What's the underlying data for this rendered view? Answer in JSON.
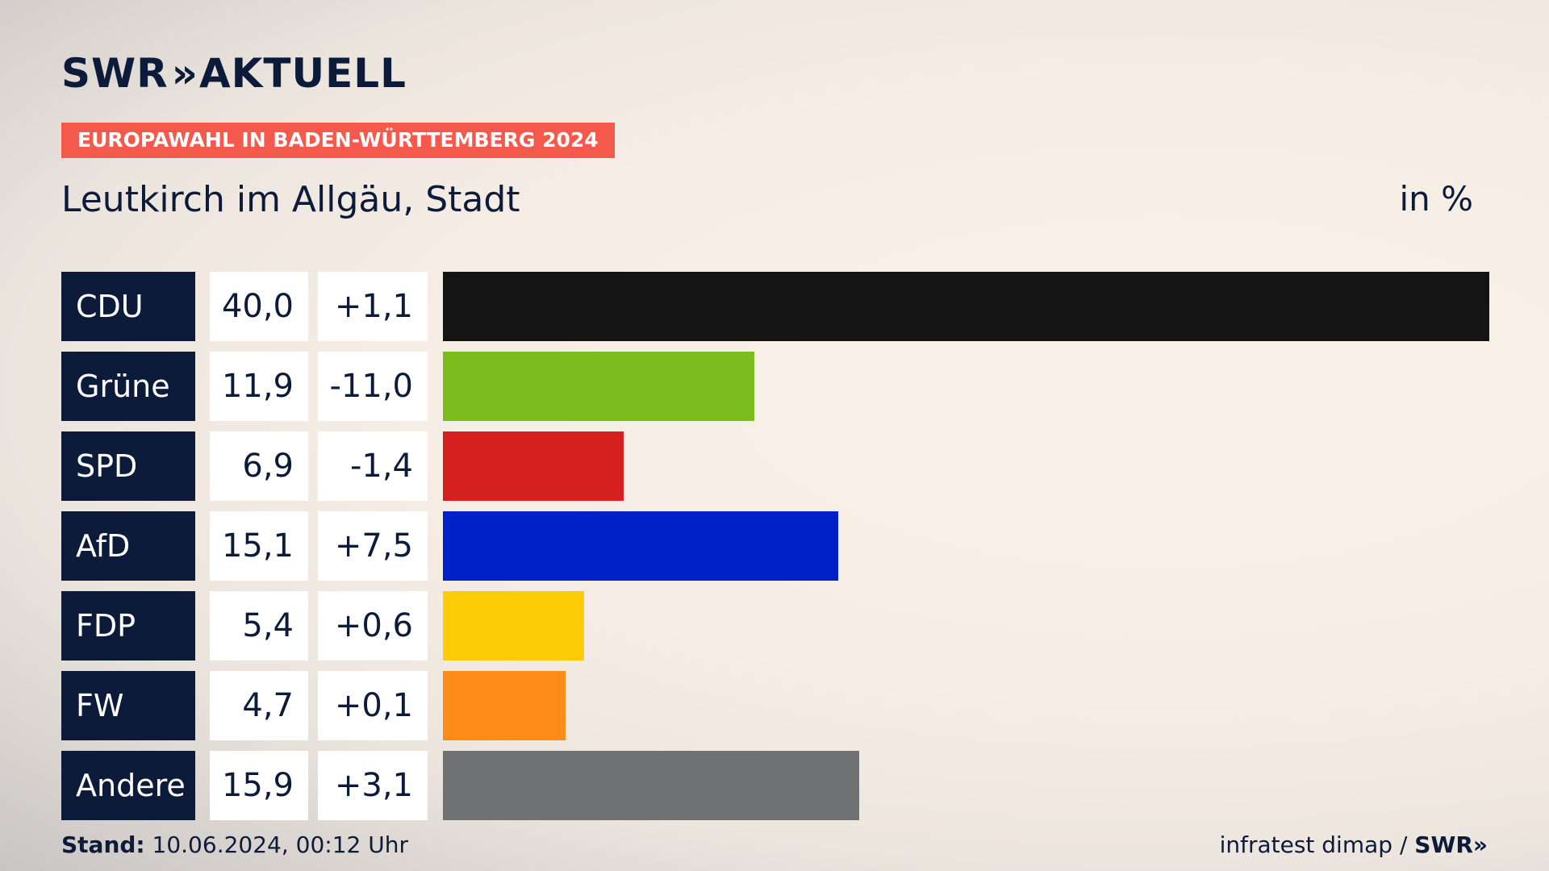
{
  "header": {
    "logo_text": "SWR",
    "logo_chevrons": "»",
    "logo_suffix": "AKTUELL",
    "badge": "EUROPAWAHL IN BADEN-WÜRTTEMBERG 2024",
    "place": "Leutkirch im Allgäu, Stadt",
    "unit": "in %"
  },
  "footer": {
    "stand_label": "Stand:",
    "stand_value": "10.06.2024, 00:12 Uhr",
    "source": "infratest dimap /",
    "source_logo": "SWR»"
  },
  "chart_data": {
    "type": "bar",
    "orientation": "horizontal",
    "categories": [
      "CDU",
      "Grüne",
      "SPD",
      "AfD",
      "FDP",
      "FW",
      "Andere"
    ],
    "values": [
      40.0,
      11.9,
      6.9,
      15.1,
      5.4,
      4.7,
      15.9
    ],
    "value_labels": [
      "40,0",
      "11,9",
      "6,9",
      "15,1",
      "5,4",
      "4,7",
      "15,9"
    ],
    "diff_labels": [
      "+1,1",
      "-11,0",
      "-1,4",
      "+7,5",
      "+0,6",
      "+0,1",
      "+3,1"
    ],
    "colors": [
      "#141414",
      "#7cbd1e",
      "#d62020",
      "#0020c8",
      "#ffcc0a",
      "#ff8c19",
      "#707173"
    ],
    "xlim": [
      0,
      40.0
    ]
  }
}
